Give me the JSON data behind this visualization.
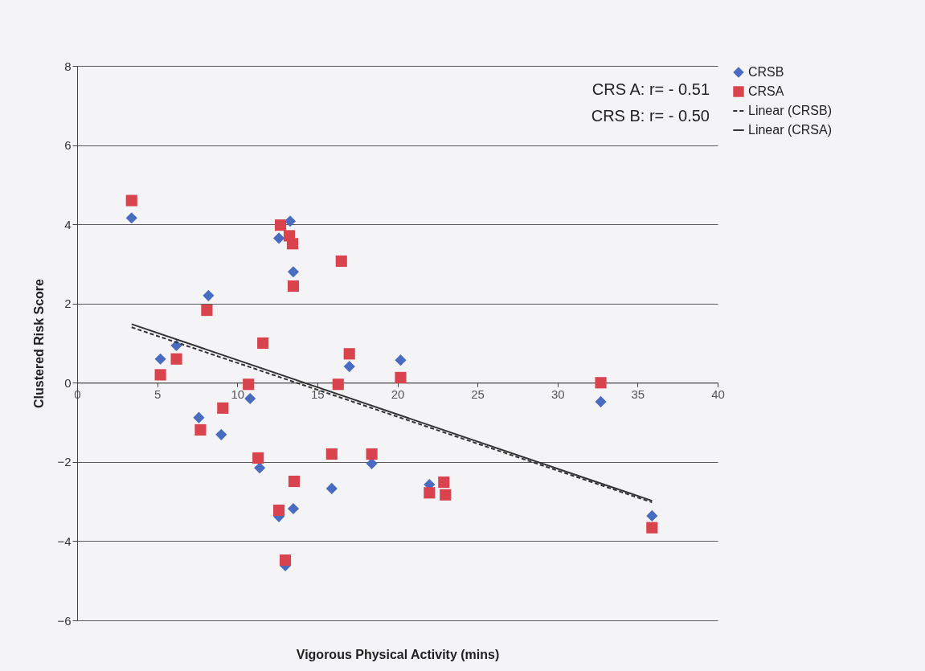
{
  "chart_data": {
    "type": "scatter",
    "xlabel": "Vigorous Physical Activity (mins)",
    "ylabel": "Clustered Risk Score",
    "annotations": [
      "CRS A: r= - 0.51",
      "CRS B: r= - 0.50"
    ],
    "xlim": [
      0,
      40
    ],
    "xticks": [
      0,
      5,
      10,
      15,
      20,
      25,
      30,
      35,
      40
    ],
    "ylim": [
      -6,
      8
    ],
    "yticks": [
      -6,
      -4,
      -2,
      0,
      2,
      4,
      6,
      8
    ],
    "grid": "y",
    "legend": "right",
    "series": [
      {
        "name": "CRSB",
        "marker": "diamond",
        "color": "#4a6cc0",
        "x": [
          3.4,
          5.2,
          6.2,
          8.2,
          7.6,
          9.0,
          10.8,
          11.4,
          12.6,
          13.0,
          13.5,
          13.3,
          12.6,
          13.5,
          17.0,
          20.2,
          15.9,
          18.4,
          22.0,
          32.7,
          35.9
        ],
        "values": [
          4.16,
          0.6,
          0.94,
          2.2,
          -0.88,
          -1.31,
          -0.4,
          -2.15,
          -3.38,
          -4.62,
          -3.18,
          4.08,
          3.65,
          2.8,
          0.41,
          0.57,
          -2.67,
          -2.04,
          -2.57,
          -0.48,
          -3.36
        ]
      },
      {
        "name": "CRSA",
        "marker": "square",
        "color": "#d9434e",
        "x": [
          3.4,
          5.2,
          6.2,
          8.1,
          7.7,
          9.1,
          10.7,
          11.6,
          11.3,
          12.6,
          13.0,
          13.55,
          12.7,
          13.25,
          13.45,
          13.5,
          16.5,
          16.3,
          17.0,
          20.2,
          15.9,
          18.4,
          22.0,
          22.9,
          23.0,
          32.7,
          35.9
        ],
        "values": [
          4.6,
          0.2,
          0.6,
          1.83,
          -1.19,
          -0.64,
          -0.04,
          1.0,
          -1.9,
          -3.22,
          -4.48,
          -2.49,
          3.98,
          3.71,
          3.51,
          2.44,
          3.07,
          -0.04,
          0.73,
          0.13,
          -1.8,
          -1.8,
          -2.78,
          -2.51,
          -2.83,
          0.0,
          -3.66
        ]
      },
      {
        "name": "Linear (CRSB)",
        "type": "line",
        "line_style": "dashed",
        "color": "#333333",
        "x": [
          3.4,
          35.9
        ],
        "values": [
          1.4,
          -3.02
        ]
      },
      {
        "name": "Linear (CRSA)",
        "type": "line",
        "line_style": "solid",
        "color": "#333333",
        "x": [
          3.4,
          35.9
        ],
        "values": [
          1.48,
          -2.98
        ]
      }
    ]
  }
}
